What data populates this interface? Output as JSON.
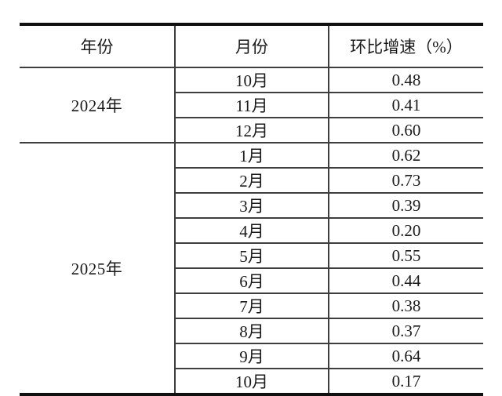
{
  "table": {
    "headers": [
      "年份",
      "月份",
      "环比增速（%）"
    ],
    "groups": [
      {
        "year": "2024年",
        "rows": [
          {
            "month": "10月",
            "value": "0.48"
          },
          {
            "month": "11月",
            "value": "0.41"
          },
          {
            "month": "12月",
            "value": "0.60"
          }
        ]
      },
      {
        "year": "2025年",
        "rows": [
          {
            "month": "1月",
            "value": "0.62"
          },
          {
            "month": "2月",
            "value": "0.73"
          },
          {
            "month": "3月",
            "value": "0.39"
          },
          {
            "month": "4月",
            "value": "0.20"
          },
          {
            "month": "5月",
            "value": "0.55"
          },
          {
            "month": "6月",
            "value": "0.44"
          },
          {
            "month": "7月",
            "value": "0.38"
          },
          {
            "month": "8月",
            "value": "0.37"
          },
          {
            "month": "9月",
            "value": "0.64"
          },
          {
            "month": "10月",
            "value": "0.17"
          }
        ]
      }
    ],
    "colors": {
      "text": "#1a1a1a",
      "grid_line": "#3e3e3e",
      "frame_line": "#101010",
      "background": "#ffffff"
    }
  },
  "chart_data": {
    "type": "table",
    "columns": [
      "年份",
      "月份",
      "环比增速（%）"
    ],
    "rows": [
      [
        "2024年",
        "10月",
        0.48
      ],
      [
        "2024年",
        "11月",
        0.41
      ],
      [
        "2024年",
        "12月",
        0.6
      ],
      [
        "2025年",
        "1月",
        0.62
      ],
      [
        "2025年",
        "2月",
        0.73
      ],
      [
        "2025年",
        "3月",
        0.39
      ],
      [
        "2025年",
        "4月",
        0.2
      ],
      [
        "2025年",
        "5月",
        0.55
      ],
      [
        "2025年",
        "6月",
        0.44
      ],
      [
        "2025年",
        "7月",
        0.38
      ],
      [
        "2025年",
        "8月",
        0.37
      ],
      [
        "2025年",
        "9月",
        0.64
      ],
      [
        "2025年",
        "10月",
        0.17
      ]
    ]
  }
}
